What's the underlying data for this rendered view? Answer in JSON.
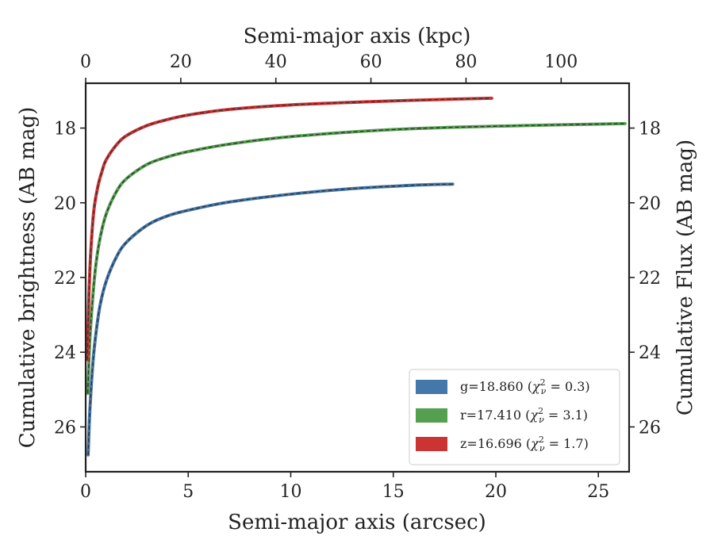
{
  "chart_data": {
    "type": "line",
    "xlabel": "Semi-major axis (arcsec)",
    "x2label": "Semi-major axis (kpc)",
    "ylabel": "Cumulative brightness (AB mag)",
    "y2label": "Cumulative Flux (AB mag)",
    "xlim": [
      0,
      26.5
    ],
    "x2lim": [
      0,
      114.3
    ],
    "ylim": [
      27.2,
      16.8
    ],
    "y_inverted": true,
    "xticks": [
      0,
      5,
      10,
      15,
      20,
      25
    ],
    "x2ticks": [
      0,
      20,
      40,
      60,
      80,
      100
    ],
    "yticks": [
      18,
      20,
      22,
      24,
      26
    ],
    "grid": false,
    "legend_position": "bottom-right",
    "series": [
      {
        "name": "g=18.860 (χ²ᵥ = 0.3)",
        "band": "g",
        "mag": "18.860",
        "chi2": "0.3",
        "color": "#4477aa",
        "x": [
          0.12,
          0.2,
          0.35,
          0.5,
          0.7,
          1.0,
          1.5,
          2.0,
          3.0,
          4.0,
          5.0,
          7.0,
          10.0,
          13.0,
          16.0,
          17.9
        ],
        "y": [
          26.75,
          25.6,
          24.3,
          23.5,
          22.75,
          22.1,
          21.45,
          21.05,
          20.6,
          20.35,
          20.2,
          19.98,
          19.77,
          19.62,
          19.53,
          19.5
        ]
      },
      {
        "name": "r=17.410 (χ²ᵥ = 3.1)",
        "band": "r",
        "mag": "17.410",
        "chi2": "3.1",
        "color": "#55a050",
        "x": [
          0.1,
          0.2,
          0.35,
          0.5,
          0.7,
          1.0,
          1.5,
          2.0,
          3.0,
          4.0,
          5.0,
          7.0,
          10.0,
          15.0,
          20.0,
          26.3
        ],
        "y": [
          25.1,
          23.7,
          22.5,
          21.65,
          20.95,
          20.3,
          19.7,
          19.35,
          18.97,
          18.77,
          18.63,
          18.43,
          18.23,
          18.04,
          17.95,
          17.88
        ]
      },
      {
        "name": "z=16.696 (χ²ᵥ = 1.7)",
        "band": "z",
        "mag": "16.696",
        "chi2": "1.7",
        "color": "#cc3333",
        "x": [
          0.08,
          0.15,
          0.25,
          0.4,
          0.6,
          0.8,
          1.0,
          1.5,
          2.0,
          3.0,
          4.0,
          5.0,
          7.0,
          10.0,
          14.0,
          17.0,
          19.8
        ],
        "y": [
          24.2,
          22.6,
          21.3,
          20.2,
          19.55,
          19.15,
          18.85,
          18.45,
          18.2,
          17.93,
          17.77,
          17.65,
          17.5,
          17.38,
          17.29,
          17.24,
          17.2
        ]
      }
    ]
  }
}
